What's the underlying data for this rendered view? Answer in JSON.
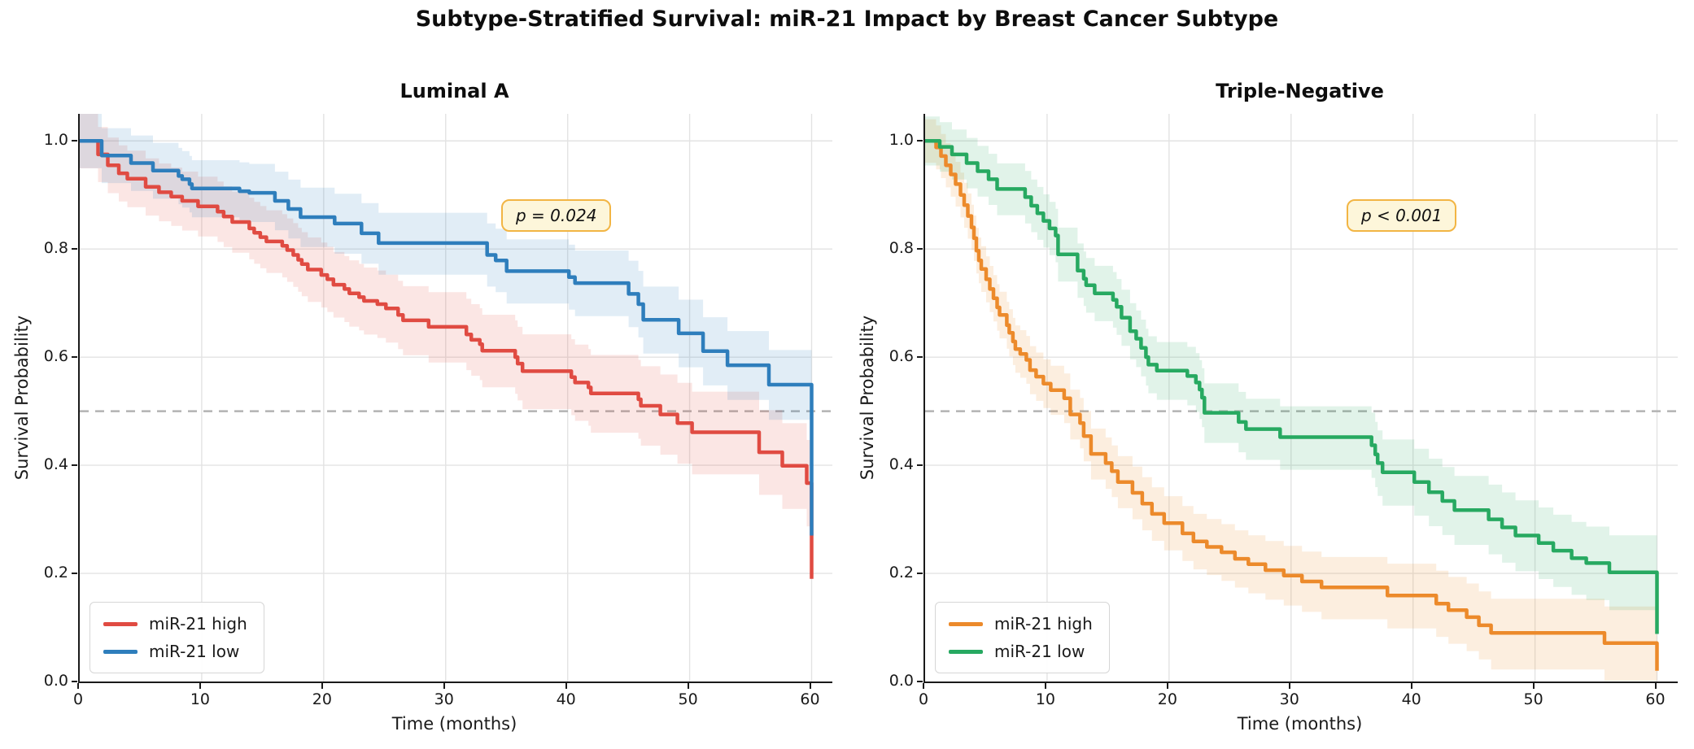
{
  "figure_title": "Subtype-Stratified Survival: miR-21 Impact by Breast Cancer Subtype",
  "chart_data": {
    "type": "line",
    "subtype": "kaplan-meier-step-curves",
    "xlabel": "Time (months)",
    "ylabel": "Survival Probability",
    "xticks": [
      0,
      10,
      20,
      30,
      40,
      50,
      60
    ],
    "ytick_labels": [
      "0.0",
      "0.2",
      "0.4",
      "0.6",
      "0.8",
      "1.0"
    ],
    "ytick_values": [
      0,
      0.2,
      0.4,
      0.6,
      0.8,
      1.0
    ],
    "xlim": [
      0,
      61.7
    ],
    "ylim": [
      0,
      1.05
    ],
    "grid": true,
    "median_reference_line": 0.5,
    "legend_position": "lower-left",
    "colors": {
      "grid": "#e3e3e3",
      "median_dash": "#b3b3b3",
      "spine": "#1a1a1a",
      "pbox_bg": "#fdf6da",
      "pbox_border": "#f2b544"
    },
    "panels": [
      {
        "title": "Luminal A",
        "p_label": "p = 0.024",
        "series": [
          {
            "name": "miR-21 high",
            "color": "#e04b42",
            "fill": "rgba(224,75,66,0.14)",
            "ci0": 0.05,
            "ci1": 0.08,
            "points": [
              [
                0,
                1.0
              ],
              [
                1.5,
                0.975
              ],
              [
                2.3,
                0.955
              ],
              [
                3.2,
                0.94
              ],
              [
                3.9,
                0.93
              ],
              [
                5.4,
                0.915
              ],
              [
                6.5,
                0.905
              ],
              [
                7.5,
                0.897
              ],
              [
                8.4,
                0.889
              ],
              [
                9.7,
                0.879
              ],
              [
                11.3,
                0.869
              ],
              [
                11.8,
                0.86
              ],
              [
                12.5,
                0.85
              ],
              [
                13.9,
                0.838
              ],
              [
                14.3,
                0.83
              ],
              [
                14.8,
                0.822
              ],
              [
                15.3,
                0.814
              ],
              [
                16.6,
                0.806
              ],
              [
                17.0,
                0.798
              ],
              [
                17.5,
                0.789
              ],
              [
                17.9,
                0.78
              ],
              [
                18.2,
                0.772
              ],
              [
                18.7,
                0.762
              ],
              [
                19.8,
                0.752
              ],
              [
                20.3,
                0.744
              ],
              [
                20.8,
                0.734
              ],
              [
                21.7,
                0.726
              ],
              [
                22.1,
                0.718
              ],
              [
                22.9,
                0.711
              ],
              [
                23.3,
                0.704
              ],
              [
                24.4,
                0.698
              ],
              [
                25.1,
                0.69
              ],
              [
                26.1,
                0.678
              ],
              [
                26.5,
                0.668
              ],
              [
                28.6,
                0.656
              ],
              [
                31.7,
                0.642
              ],
              [
                32.1,
                0.632
              ],
              [
                32.8,
                0.624
              ],
              [
                33.0,
                0.612
              ],
              [
                35.7,
                0.6
              ],
              [
                35.9,
                0.588
              ],
              [
                36.3,
                0.574
              ],
              [
                40.3,
                0.563
              ],
              [
                40.6,
                0.553
              ],
              [
                41.7,
                0.544
              ],
              [
                41.9,
                0.533
              ],
              [
                45.8,
                0.522
              ],
              [
                46.0,
                0.51
              ],
              [
                47.6,
                0.494
              ],
              [
                49.0,
                0.478
              ],
              [
                50.2,
                0.461
              ],
              [
                55.7,
                0.424
              ],
              [
                57.6,
                0.399
              ],
              [
                59.6,
                0.367
              ],
              [
                60,
                0.19
              ]
            ]
          },
          {
            "name": "miR-21 low",
            "color": "#2e7ebc",
            "fill": "rgba(46,126,188,0.14)",
            "ci0": 0.05,
            "ci1": 0.065,
            "points": [
              [
                0,
                1.0
              ],
              [
                1.8,
                0.973
              ],
              [
                4.2,
                0.959
              ],
              [
                6.0,
                0.945
              ],
              [
                8.1,
                0.935
              ],
              [
                8.4,
                0.929
              ],
              [
                9.0,
                0.92
              ],
              [
                9.2,
                0.912
              ],
              [
                13.1,
                0.907
              ],
              [
                13.9,
                0.904
              ],
              [
                16.0,
                0.889
              ],
              [
                17.1,
                0.874
              ],
              [
                18.1,
                0.859
              ],
              [
                20.9,
                0.847
              ],
              [
                23.1,
                0.829
              ],
              [
                24.5,
                0.811
              ],
              [
                33.4,
                0.789
              ],
              [
                34.1,
                0.779
              ],
              [
                35.0,
                0.759
              ],
              [
                40.1,
                0.748
              ],
              [
                40.6,
                0.737
              ],
              [
                45.0,
                0.717
              ],
              [
                45.8,
                0.698
              ],
              [
                46.2,
                0.669
              ],
              [
                49.1,
                0.644
              ],
              [
                51.1,
                0.611
              ],
              [
                53.1,
                0.585
              ],
              [
                56.5,
                0.549
              ],
              [
                60,
                0.27
              ]
            ]
          }
        ]
      },
      {
        "title": "Triple-Negative",
        "p_label": "p < 0.001",
        "series": [
          {
            "name": "miR-21 high",
            "color": "#ec8a2b",
            "fill": "rgba(236,138,43,0.15)",
            "ci0": 0.04,
            "ci1": 0.07,
            "points": [
              [
                0,
                1.0
              ],
              [
                0.9,
                0.988
              ],
              [
                1.3,
                0.972
              ],
              [
                1.7,
                0.955
              ],
              [
                2.1,
                0.938
              ],
              [
                2.5,
                0.92
              ],
              [
                2.9,
                0.9
              ],
              [
                3.2,
                0.881
              ],
              [
                3.5,
                0.861
              ],
              [
                3.8,
                0.84
              ],
              [
                4.0,
                0.82
              ],
              [
                4.2,
                0.797
              ],
              [
                4.4,
                0.779
              ],
              [
                4.6,
                0.763
              ],
              [
                5.0,
                0.744
              ],
              [
                5.3,
                0.726
              ],
              [
                5.6,
                0.709
              ],
              [
                5.9,
                0.692
              ],
              [
                6.1,
                0.678
              ],
              [
                6.7,
                0.659
              ],
              [
                6.9,
                0.645
              ],
              [
                7.2,
                0.629
              ],
              [
                7.4,
                0.615
              ],
              [
                7.8,
                0.606
              ],
              [
                8.3,
                0.595
              ],
              [
                8.6,
                0.576
              ],
              [
                9.1,
                0.564
              ],
              [
                9.7,
                0.551
              ],
              [
                10.3,
                0.539
              ],
              [
                11.4,
                0.524
              ],
              [
                11.9,
                0.494
              ],
              [
                12.7,
                0.478
              ],
              [
                13.0,
                0.454
              ],
              [
                13.6,
                0.421
              ],
              [
                14.8,
                0.404
              ],
              [
                15.3,
                0.389
              ],
              [
                15.8,
                0.369
              ],
              [
                17.0,
                0.349
              ],
              [
                17.8,
                0.329
              ],
              [
                18.6,
                0.31
              ],
              [
                19.6,
                0.293
              ],
              [
                21.1,
                0.274
              ],
              [
                22.0,
                0.259
              ],
              [
                23.1,
                0.249
              ],
              [
                24.3,
                0.239
              ],
              [
                25.4,
                0.227
              ],
              [
                26.5,
                0.217
              ],
              [
                27.9,
                0.206
              ],
              [
                29.4,
                0.196
              ],
              [
                30.9,
                0.185
              ],
              [
                32.5,
                0.174
              ],
              [
                37.9,
                0.159
              ],
              [
                41.9,
                0.144
              ],
              [
                42.9,
                0.132
              ],
              [
                44.4,
                0.119
              ],
              [
                45.4,
                0.104
              ],
              [
                46.4,
                0.09
              ],
              [
                55.7,
                0.071
              ],
              [
                60,
                0.02
              ]
            ]
          },
          {
            "name": "miR-21 low",
            "color": "#27a961",
            "fill": "rgba(39,169,97,0.14)",
            "ci0": 0.045,
            "ci1": 0.07,
            "points": [
              [
                0,
                1.0
              ],
              [
                1.2,
                0.989
              ],
              [
                2.2,
                0.975
              ],
              [
                3.4,
                0.959
              ],
              [
                4.3,
                0.944
              ],
              [
                5.2,
                0.929
              ],
              [
                5.9,
                0.911
              ],
              [
                8.2,
                0.896
              ],
              [
                8.7,
                0.88
              ],
              [
                9.2,
                0.866
              ],
              [
                9.7,
                0.852
              ],
              [
                10.2,
                0.838
              ],
              [
                10.7,
                0.825
              ],
              [
                10.9,
                0.79
              ],
              [
                12.5,
                0.76
              ],
              [
                13.0,
                0.745
              ],
              [
                13.2,
                0.733
              ],
              [
                13.9,
                0.718
              ],
              [
                15.4,
                0.706
              ],
              [
                15.7,
                0.693
              ],
              [
                16.1,
                0.673
              ],
              [
                16.8,
                0.648
              ],
              [
                17.3,
                0.634
              ],
              [
                17.7,
                0.617
              ],
              [
                18.1,
                0.6
              ],
              [
                18.3,
                0.586
              ],
              [
                19.0,
                0.575
              ],
              [
                21.5,
                0.565
              ],
              [
                22.2,
                0.553
              ],
              [
                22.5,
                0.54
              ],
              [
                22.7,
                0.525
              ],
              [
                22.9,
                0.497
              ],
              [
                25.7,
                0.48
              ],
              [
                26.3,
                0.467
              ],
              [
                29.1,
                0.452
              ],
              [
                36.6,
                0.437
              ],
              [
                36.9,
                0.42
              ],
              [
                37.1,
                0.404
              ],
              [
                37.5,
                0.387
              ],
              [
                40.1,
                0.369
              ],
              [
                41.3,
                0.35
              ],
              [
                42.4,
                0.334
              ],
              [
                43.4,
                0.317
              ],
              [
                46.2,
                0.3
              ],
              [
                47.3,
                0.285
              ],
              [
                48.4,
                0.27
              ],
              [
                50.3,
                0.256
              ],
              [
                51.5,
                0.242
              ],
              [
                53.0,
                0.228
              ],
              [
                54.2,
                0.219
              ],
              [
                56.1,
                0.202
              ],
              [
                60,
                0.088
              ]
            ]
          }
        ]
      }
    ]
  }
}
